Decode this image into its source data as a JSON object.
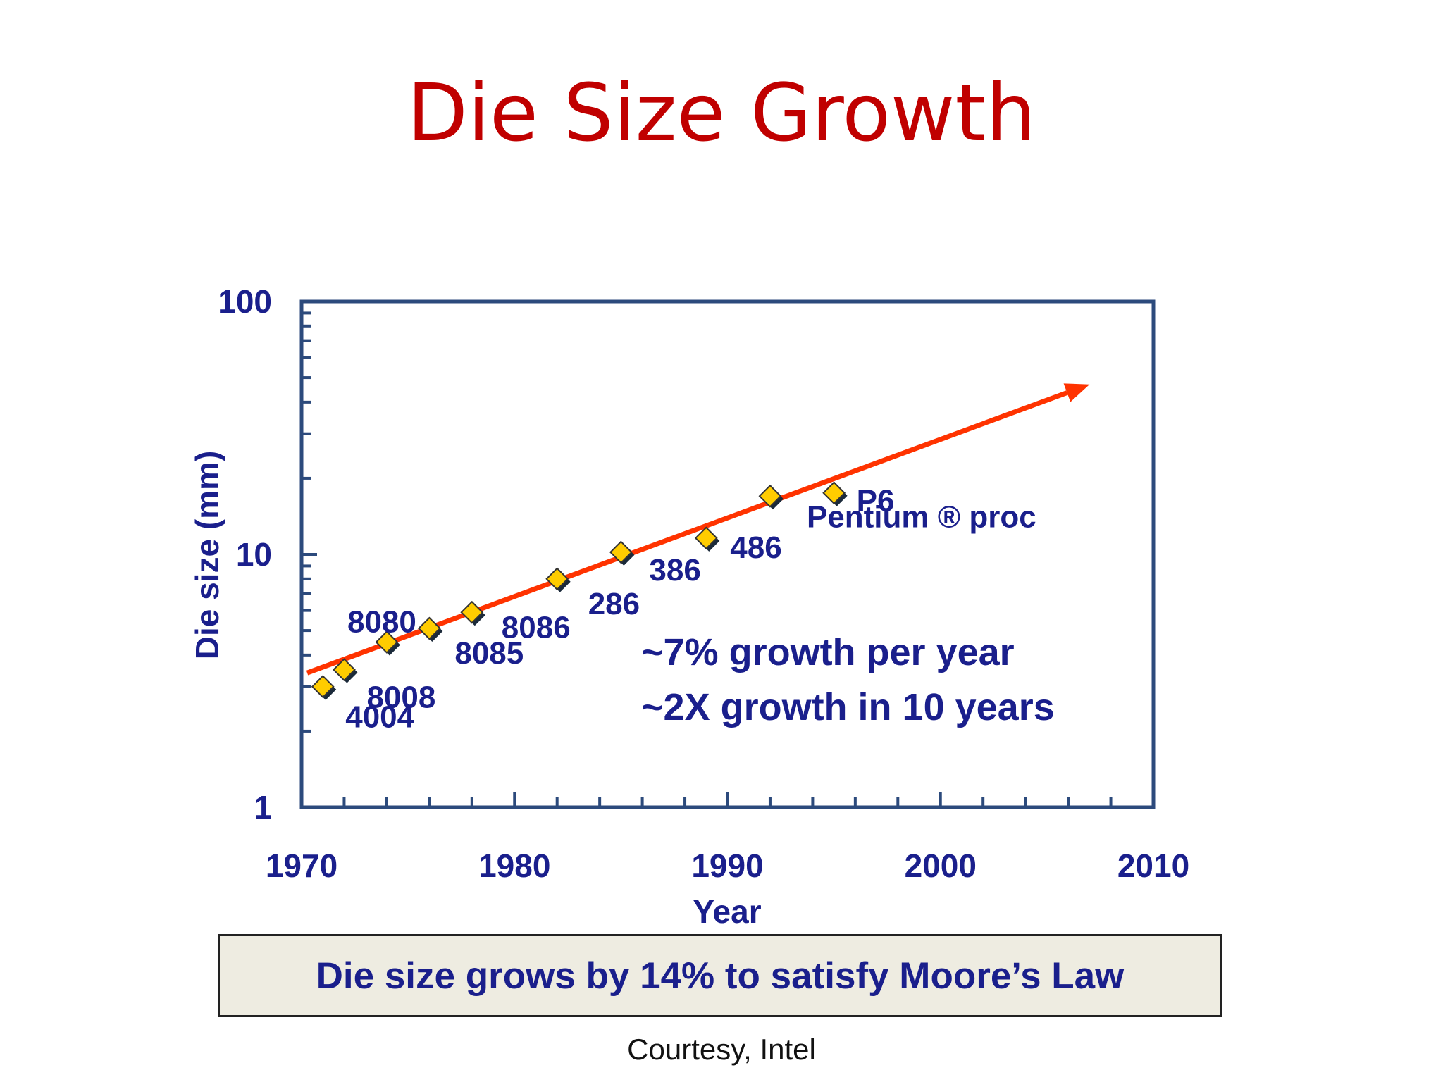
{
  "title": "Die Size Growth",
  "chart_data": {
    "type": "scatter",
    "xlabel": "Year",
    "ylabel": "Die size (mm)",
    "xlim": [
      1970,
      2010
    ],
    "ylim": [
      1,
      100
    ],
    "yscale": "log",
    "x_ticks": [
      "1970",
      "1980",
      "1990",
      "2000",
      "2010"
    ],
    "y_ticks": [
      "1",
      "10",
      "100"
    ],
    "points": [
      {
        "label": "4004",
        "x": 1971,
        "y": 3.0
      },
      {
        "label": "8008",
        "x": 1972,
        "y": 3.5
      },
      {
        "label": "8080",
        "x": 1974,
        "y": 4.5
      },
      {
        "label": "8085",
        "x": 1976,
        "y": 5.1
      },
      {
        "label": "8086",
        "x": 1978,
        "y": 5.9
      },
      {
        "label": "286",
        "x": 1982,
        "y": 8.0
      },
      {
        "label": "386",
        "x": 1985,
        "y": 10.2
      },
      {
        "label": "486",
        "x": 1989,
        "y": 11.6
      },
      {
        "label": "Pentium ® proc",
        "x": 1992,
        "y": 17.0
      },
      {
        "label": "P6",
        "x": 1995,
        "y": 17.5
      }
    ],
    "trend": {
      "x": [
        1970,
        2007
      ],
      "y": [
        3.4,
        47
      ]
    },
    "annotations": [
      "~7% growth per year",
      "~2X growth in 10 years"
    ],
    "colors": {
      "marker": "#ffcc00",
      "trend": "#ff3300",
      "text": "#1a1f8c",
      "axis": "#2c4a7c"
    }
  },
  "callout": "Die size grows by 14% to satisfy Moore’s Law",
  "credit": "Courtesy, Intel"
}
